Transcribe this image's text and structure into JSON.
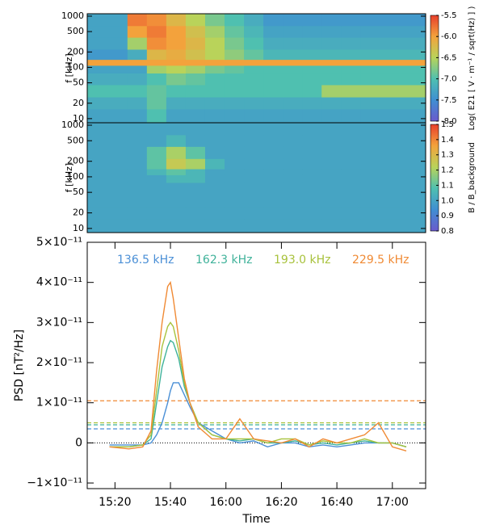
{
  "chart_data": [
    {
      "type": "heatmap",
      "y_label": "f [kHz]",
      "colorbar_label": "Log( E21 [ V · m⁻¹ / sqrt(Hz) ] )",
      "x": [
        "15:21",
        "15:28",
        "15:35",
        "15:42",
        "15:49",
        "15:56",
        "16:03",
        "16:10",
        "16:17",
        "16:24",
        "16:31",
        "16:38",
        "16:45",
        "16:52",
        "16:59"
      ],
      "y": [
        12,
        20,
        35,
        60,
        100,
        120,
        170,
        300,
        500,
        850
      ],
      "values": [
        [
          -7.3,
          -7.3,
          -7.0,
          -7.3,
          -7.3,
          -7.3,
          -7.3,
          -7.3,
          -7.3,
          -7.3,
          -7.3,
          -7.3,
          -7.3,
          -7.3,
          -7.3
        ],
        [
          -7.2,
          -7.2,
          -6.9,
          -7.2,
          -7.2,
          -7.2,
          -7.2,
          -7.2,
          -7.2,
          -7.2,
          -7.2,
          -7.2,
          -7.2,
          -7.2,
          -7.2
        ],
        [
          -7.0,
          -7.0,
          -6.9,
          -7.0,
          -7.0,
          -7.0,
          -7.0,
          -7.0,
          -7.0,
          -7.0,
          -7.0,
          -6.6,
          -6.6,
          -6.6,
          -6.6
        ],
        [
          -7.2,
          -7.2,
          -7.0,
          -6.8,
          -6.9,
          -7.0,
          -7.0,
          -7.0,
          -7.0,
          -7.0,
          -7.0,
          -7.0,
          -7.0,
          -7.0,
          -7.0
        ],
        [
          -7.3,
          -7.3,
          -6.6,
          -6.5,
          -6.6,
          -6.8,
          -6.9,
          -7.0,
          -7.0,
          -7.0,
          -7.0,
          -7.0,
          -7.0,
          -7.0,
          -7.0
        ],
        [
          -6.0,
          -6.0,
          -6.0,
          -6.0,
          -6.0,
          -6.0,
          -6.0,
          -6.0,
          -6.0,
          -6.0,
          -6.0,
          -6.0,
          -6.0,
          -6.0,
          -6.0
        ],
        [
          -7.4,
          -7.2,
          -6.2,
          -6.1,
          -6.3,
          -6.5,
          -6.7,
          -6.9,
          -7.1,
          -7.1,
          -7.1,
          -7.1,
          -7.1,
          -7.1,
          -7.1
        ],
        [
          -7.3,
          -6.6,
          -5.9,
          -6.0,
          -6.2,
          -6.5,
          -6.8,
          -7.0,
          -7.2,
          -7.2,
          -7.2,
          -7.2,
          -7.2,
          -7.2,
          -7.2
        ],
        [
          -7.3,
          -6.0,
          -5.8,
          -6.0,
          -6.3,
          -6.6,
          -6.9,
          -7.1,
          -7.3,
          -7.3,
          -7.3,
          -7.3,
          -7.3,
          -7.3,
          -7.3
        ],
        [
          -7.3,
          -5.8,
          -5.9,
          -6.2,
          -6.5,
          -6.8,
          -7.0,
          -7.2,
          -7.4,
          -7.4,
          -7.4,
          -7.4,
          -7.4,
          -7.4,
          -7.4
        ]
      ],
      "xlim": [
        "15:10",
        "17:12"
      ],
      "ylim": [
        8.3,
        1115
      ],
      "log_y": true,
      "yticks": [
        10,
        20,
        50,
        100,
        200,
        500,
        1000
      ],
      "clim": [
        -8.0,
        -5.5
      ],
      "cticks": [
        {
          "value": -8.0,
          "label": "-8.0"
        },
        {
          "value": -7.5,
          "label": "-7.5"
        },
        {
          "value": -7.0,
          "label": "-7.0"
        },
        {
          "value": -6.5,
          "label": "-6.5"
        },
        {
          "value": -6.0,
          "label": "-6.0"
        },
        {
          "value": -5.5,
          "label": "-5.5"
        }
      ],
      "colormap": [
        "#6a5acd",
        "#3f8fd2",
        "#4fc0b0",
        "#b9d35a",
        "#f3a23c",
        "#e8402c"
      ]
    },
    {
      "type": "heatmap",
      "y_label": "f [kHz]",
      "colorbar_label": "B / B_background",
      "x": [
        "15:21",
        "15:28",
        "15:35",
        "15:42",
        "15:49",
        "15:56",
        "16:03",
        "16:10",
        "16:17",
        "16:24",
        "16:31",
        "16:38",
        "16:45",
        "16:52",
        "16:59"
      ],
      "y": [
        12,
        20,
        35,
        60,
        100,
        120,
        170,
        300,
        500,
        850
      ],
      "values": [
        [
          1.0,
          1.0,
          1.0,
          1.0,
          1.0,
          1.0,
          1.0,
          1.0,
          1.0,
          1.0,
          1.0,
          1.0,
          1.0,
          1.0,
          1.0
        ],
        [
          1.0,
          1.0,
          1.0,
          1.0,
          1.0,
          1.0,
          1.0,
          1.0,
          1.0,
          1.0,
          1.0,
          1.0,
          1.0,
          1.0,
          1.0
        ],
        [
          1.0,
          1.0,
          1.0,
          1.0,
          1.0,
          1.0,
          1.0,
          1.0,
          1.0,
          1.0,
          1.0,
          1.0,
          1.0,
          1.0,
          1.0
        ],
        [
          1.0,
          1.0,
          1.0,
          1.0,
          1.0,
          1.0,
          1.0,
          1.0,
          1.0,
          1.0,
          1.0,
          1.0,
          1.0,
          1.0,
          1.0
        ],
        [
          1.0,
          1.0,
          1.0,
          1.05,
          1.05,
          1.0,
          1.0,
          1.0,
          1.0,
          1.0,
          1.0,
          1.0,
          1.0,
          1.0,
          1.0
        ],
        [
          1.0,
          1.0,
          1.05,
          1.1,
          1.05,
          1.0,
          1.0,
          1.0,
          1.0,
          1.0,
          1.0,
          1.0,
          1.0,
          1.0,
          1.0
        ],
        [
          1.0,
          1.0,
          1.1,
          1.25,
          1.2,
          1.05,
          1.0,
          1.0,
          1.0,
          1.0,
          1.0,
          1.0,
          1.0,
          1.0,
          1.0
        ],
        [
          1.0,
          1.0,
          1.1,
          1.2,
          1.1,
          1.0,
          1.0,
          1.0,
          1.0,
          1.0,
          1.0,
          1.0,
          1.0,
          1.0,
          1.0
        ],
        [
          1.0,
          1.0,
          1.0,
          1.05,
          1.0,
          1.0,
          1.0,
          1.0,
          1.0,
          1.0,
          1.0,
          1.0,
          1.0,
          1.0,
          1.0
        ],
        [
          1.0,
          1.0,
          1.0,
          1.0,
          1.0,
          1.0,
          1.0,
          1.0,
          1.0,
          1.0,
          1.0,
          1.0,
          1.0,
          1.0,
          1.0
        ]
      ],
      "xlim": [
        "15:10",
        "17:12"
      ],
      "ylim": [
        8.3,
        1115
      ],
      "log_y": true,
      "yticks": [
        10,
        20,
        50,
        100,
        200,
        500,
        1000
      ],
      "clim": [
        0.8,
        1.5
      ],
      "cticks": [
        0.8,
        0.9,
        {
          "value": 1.0,
          "label": "1.0"
        },
        1.1,
        1.2,
        1.3,
        1.4,
        1.5
      ],
      "colormap": [
        "#6a5acd",
        "#3f8fd2",
        "#4fc0b0",
        "#b9d35a",
        "#f3a23c",
        "#e8402c"
      ]
    },
    {
      "type": "line",
      "x_label": "Time",
      "y_label": "PSD [nT²/Hz]",
      "x": [
        "15:18",
        "15:25",
        "15:30",
        "15:33",
        "15:35",
        "15:37",
        "15:39",
        "15:40",
        "15:41",
        "15:43",
        "15:45",
        "15:47",
        "15:50",
        "15:55",
        "16:00",
        "16:05",
        "16:10",
        "16:15",
        "16:20",
        "16:25",
        "16:30",
        "16:35",
        "16:40",
        "16:45",
        "16:50",
        "16:55",
        "17:00",
        "17:05"
      ],
      "series": [
        {
          "name": "136.5 kHz",
          "color": "#4a8fd6",
          "threshold": 3.5e-12,
          "values": [
            -5e-13,
            -5e-13,
            -5e-13,
            0,
            2e-12,
            5e-12,
            1e-11,
            1.3e-11,
            1.5e-11,
            1.5e-11,
            1.2e-11,
            9e-12,
            5e-12,
            3e-12,
            1e-12,
            0,
            5e-13,
            -1e-12,
            0,
            0,
            -1e-12,
            -5e-13,
            -1e-12,
            -5e-13,
            0,
            0,
            0,
            -1e-12
          ]
        },
        {
          "name": "162.3 kHz",
          "color": "#3fb29a",
          "threshold": 4.5e-12,
          "values": [
            -1e-12,
            -1e-12,
            -5e-13,
            1e-12,
            1e-11,
            1.9e-11,
            2.4e-11,
            2.55e-11,
            2.5e-11,
            2.1e-11,
            1.4e-11,
            1e-11,
            5e-12,
            2e-12,
            1e-12,
            5e-13,
            1e-12,
            0,
            0,
            5e-13,
            -5e-13,
            0,
            -5e-13,
            0,
            5e-13,
            0,
            0,
            -1e-12
          ]
        },
        {
          "name": "193.0 kHz",
          "color": "#a8c23c",
          "threshold": 5e-12,
          "values": [
            -1e-12,
            -1e-12,
            -5e-13,
            2e-12,
            1.3e-11,
            2.4e-11,
            2.9e-11,
            3e-11,
            2.9e-11,
            2.3e-11,
            1.5e-11,
            1e-11,
            5e-12,
            2e-12,
            1e-12,
            1e-12,
            1e-12,
            0,
            1e-12,
            1e-12,
            -5e-13,
            5e-13,
            0,
            0,
            1e-12,
            0,
            0,
            -1e-12
          ]
        },
        {
          "name": "229.5 kHz",
          "color": "#f08a34",
          "threshold": 1.05e-11,
          "values": [
            -1e-12,
            -1.5e-12,
            -1e-12,
            3e-12,
            1.8e-11,
            3e-11,
            3.9e-11,
            4e-11,
            3.6e-11,
            2.6e-11,
            1.6e-11,
            1e-11,
            4e-12,
            1e-12,
            1e-12,
            6e-12,
            1e-12,
            5e-13,
            0,
            1e-12,
            -1e-12,
            1e-12,
            0,
            1e-12,
            2e-12,
            5e-12,
            -1e-12,
            -2e-12
          ]
        }
      ],
      "reference_line": 0,
      "xlim": [
        "15:10",
        "17:12"
      ],
      "ylim": [
        -1.14e-11,
        5e-11
      ],
      "xticks": [
        "15:20",
        "15:40",
        "16:00",
        "16:20",
        "16:40",
        "17:00"
      ],
      "yticks": [
        {
          "value": -1e-11,
          "label": "−1×10⁻¹¹"
        },
        0,
        {
          "value": 1e-11,
          "label": "1×10⁻¹¹"
        },
        {
          "value": 2e-11,
          "label": "2×10⁻¹¹"
        },
        {
          "value": 3e-11,
          "label": "3×10⁻¹¹"
        },
        {
          "value": 4e-11,
          "label": "4×10⁻¹¹"
        },
        {
          "value": 5e-11,
          "label": "5×10⁻¹¹"
        }
      ]
    }
  ]
}
